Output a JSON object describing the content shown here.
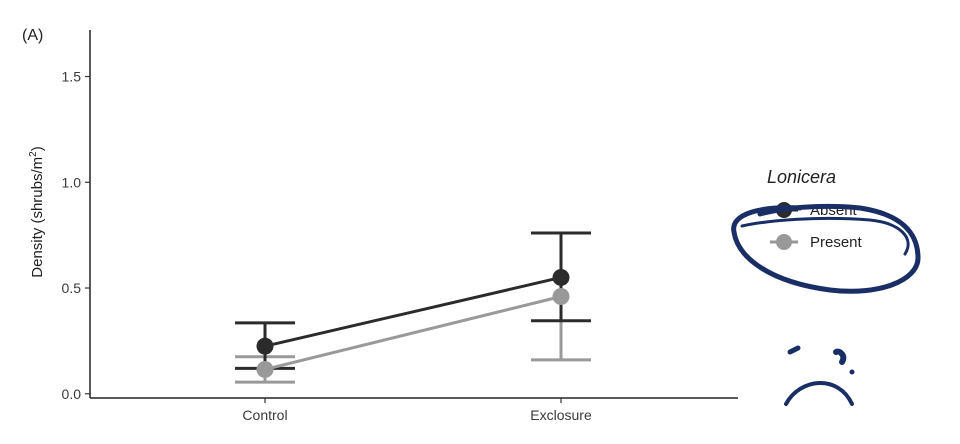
{
  "chart_data": {
    "type": "line",
    "panel_label": "(A)",
    "ylabel_main": "Density (shrubs/m",
    "ylabel_sup": "2",
    "ylabel_end": ")",
    "xlabel": "",
    "ylim": [
      -0.02,
      1.72
    ],
    "yticks": [
      0.0,
      0.5,
      1.0,
      1.5
    ],
    "ytick_labels": [
      "0.0",
      "0.5",
      "1.0",
      "1.5"
    ],
    "categories": [
      "Control",
      "Exclosure"
    ],
    "legend_title": "Lonicera",
    "legend_position": "right",
    "grid": false,
    "series": [
      {
        "name": "Absent",
        "color": "#2b2b2b",
        "values": [
          0.225,
          0.55
        ],
        "err_low": [
          0.12,
          0.345
        ],
        "err_high": [
          0.335,
          0.76
        ]
      },
      {
        "name": "Present",
        "color": "#999999",
        "values": [
          0.115,
          0.46
        ],
        "err_low": [
          0.055,
          0.16
        ],
        "err_high": [
          0.175,
          0.76
        ]
      }
    ],
    "annotation_color": "#1a2e66"
  }
}
